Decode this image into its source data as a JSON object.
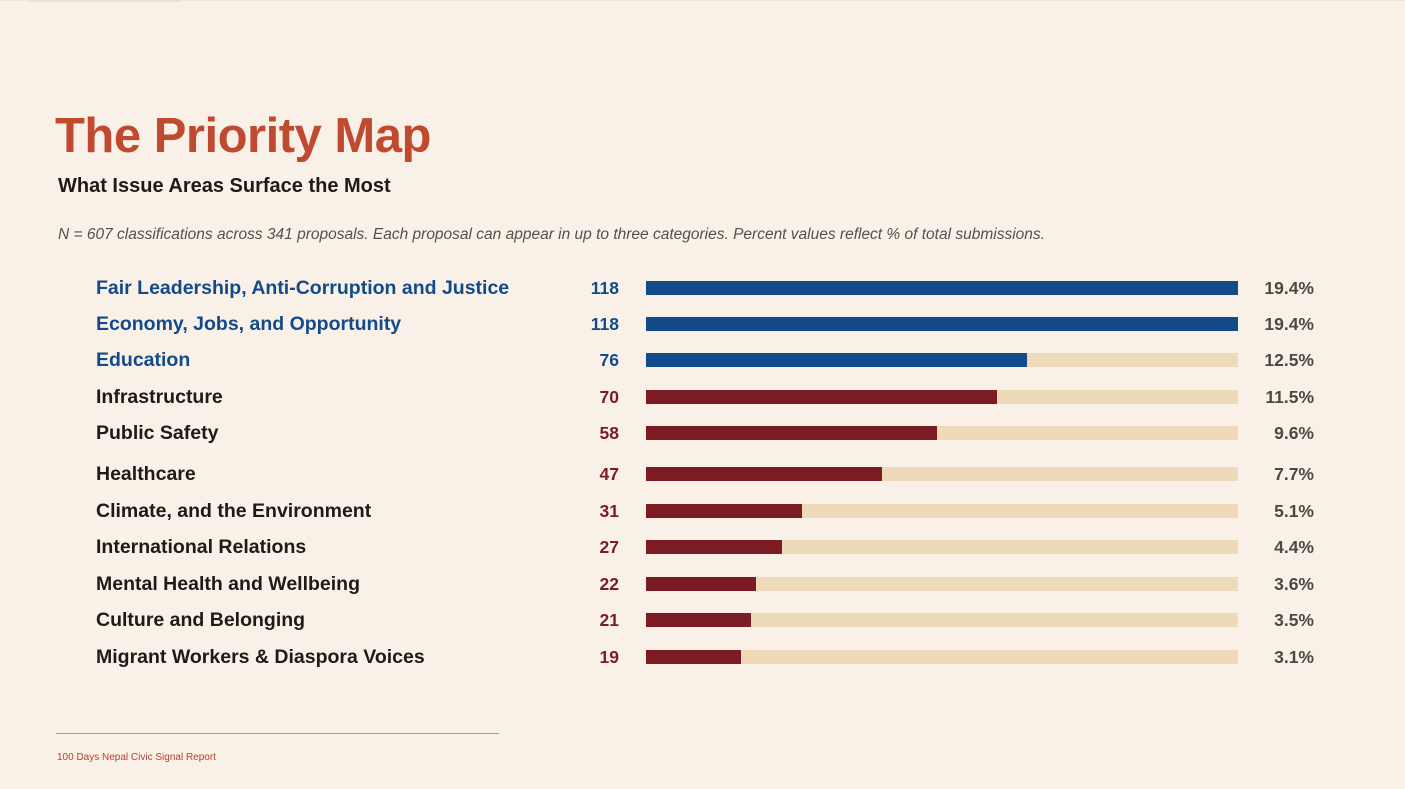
{
  "title": "The Priority Map",
  "subtitle": "What Issue Areas Surface the Most",
  "note": "N = 607 classifications across 341 proposals. Each proposal can appear in up to three categories. Percent values reflect % of total submissions.",
  "footer": "100 Days Nepal Civic Signal Report",
  "colors": {
    "background": "#f9f1e8",
    "title": "#c04a30",
    "highlight": "#124a8c",
    "standard": "#7b1c25",
    "track": "#eed9b9",
    "text": "#1e1a17",
    "percent": "#4e4843"
  },
  "chart_data": {
    "type": "bar",
    "orientation": "horizontal",
    "categories": [
      "Fair Leadership, Anti-Corruption and Justice",
      "Economy, Jobs, and Opportunity",
      "Education",
      "Infrastructure",
      "Public Safety",
      "Healthcare",
      "Climate, and the Environment",
      "International Relations",
      "Mental Health and Wellbeing",
      "Culture and Belonging",
      "Migrant Workers & Diaspora Voices"
    ],
    "values": [
      118,
      118,
      76,
      70,
      58,
      47,
      31,
      27,
      22,
      21,
      19
    ],
    "percent_labels": [
      "19.4%",
      "19.4%",
      "12.5%",
      "11.5%",
      "9.6%",
      "7.7%",
      "5.1%",
      "4.4%",
      "3.6%",
      "3.5%",
      "3.1%"
    ],
    "highlighted": [
      true,
      true,
      true,
      false,
      false,
      false,
      false,
      false,
      false,
      false,
      false
    ],
    "xlim": [
      0,
      118
    ],
    "grid": false,
    "legend": "none"
  }
}
